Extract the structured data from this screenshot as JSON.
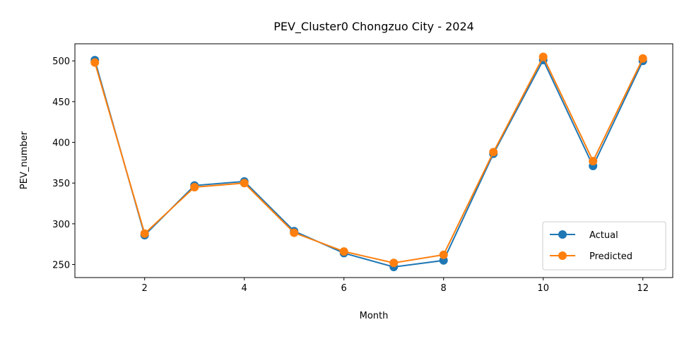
{
  "chart_data": {
    "type": "line",
    "title": "PEV_Cluster0 Chongzuo City - 2024",
    "xlabel": "Month",
    "ylabel": "PEV_number",
    "x": [
      1,
      2,
      3,
      4,
      5,
      6,
      7,
      8,
      9,
      10,
      11,
      12
    ],
    "xlim": [
      0.6,
      12.6
    ],
    "ylim": [
      234,
      521
    ],
    "xticks": [
      2,
      4,
      6,
      8,
      10,
      12
    ],
    "yticks": [
      250,
      300,
      350,
      400,
      450,
      500
    ],
    "grid": false,
    "legend_position": "bottom-right",
    "series": [
      {
        "name": "Actual",
        "color": "#1f77b4",
        "marker": "circle",
        "values": [
          501,
          286,
          347,
          352,
          291,
          264,
          247,
          255,
          386,
          501,
          371,
          500
        ]
      },
      {
        "name": "Predicted",
        "color": "#ff7f0e",
        "marker": "circle",
        "values": [
          498,
          288,
          345,
          350,
          289,
          266,
          252,
          262,
          388,
          505,
          377,
          503
        ]
      }
    ]
  }
}
